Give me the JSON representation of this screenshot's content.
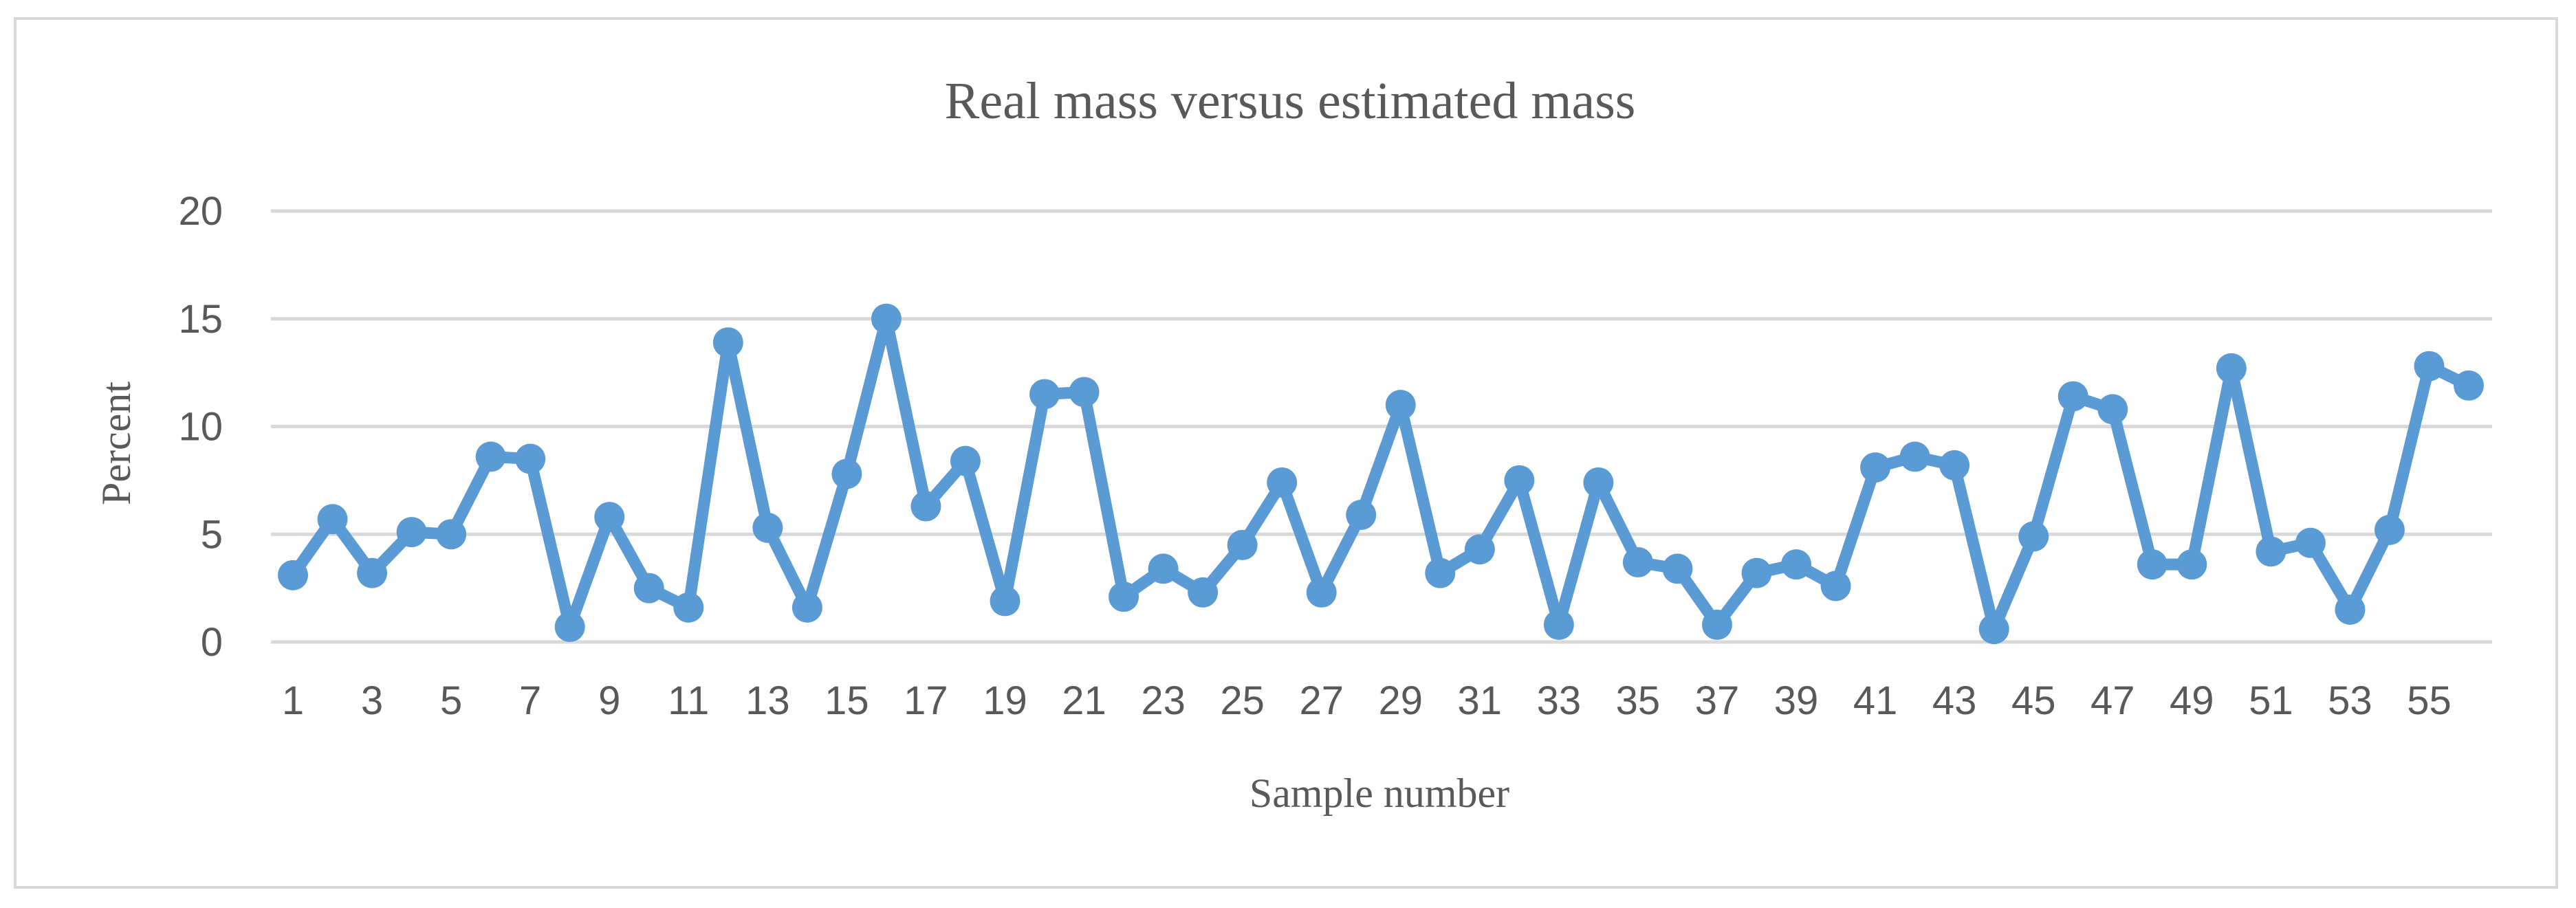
{
  "chart_data": {
    "type": "line",
    "title": "Real mass versus estimated mass",
    "xlabel": "Sample number",
    "ylabel": "Percent",
    "ylim": [
      0,
      20
    ],
    "yticks": [
      0,
      5,
      10,
      15,
      20
    ],
    "grid": true,
    "x": [
      1,
      2,
      3,
      4,
      5,
      6,
      7,
      8,
      9,
      10,
      11,
      12,
      13,
      14,
      15,
      16,
      17,
      18,
      19,
      20,
      21,
      22,
      23,
      24,
      25,
      26,
      27,
      28,
      29,
      30,
      31,
      32,
      33,
      34,
      35,
      36,
      37,
      38,
      39,
      40,
      41,
      42,
      43,
      44,
      45,
      46,
      47,
      48,
      49,
      50,
      51,
      52,
      53,
      54,
      55,
      56
    ],
    "xtick_labels": [
      "1",
      "3",
      "5",
      "7",
      "9",
      "11",
      "13",
      "15",
      "17",
      "19",
      "21",
      "23",
      "25",
      "27",
      "29",
      "31",
      "33",
      "35",
      "37",
      "39",
      "41",
      "43",
      "45",
      "47",
      "49",
      "51",
      "53",
      "55"
    ],
    "series": [
      {
        "name": "Percent",
        "color": "#5b9bd5",
        "values": [
          3.1,
          5.7,
          3.2,
          5.1,
          5.0,
          8.6,
          8.5,
          0.7,
          5.8,
          2.5,
          1.6,
          13.9,
          5.3,
          1.6,
          7.8,
          15.0,
          6.3,
          8.4,
          1.9,
          11.5,
          11.6,
          2.1,
          3.4,
          2.3,
          4.5,
          7.4,
          2.3,
          5.9,
          11.0,
          3.2,
          4.3,
          7.5,
          0.8,
          7.4,
          3.7,
          3.4,
          0.8,
          3.2,
          3.6,
          2.6,
          8.1,
          8.6,
          8.2,
          0.6,
          4.9,
          11.4,
          10.8,
          3.6,
          3.6,
          12.7,
          4.2,
          4.6,
          1.5,
          5.2,
          12.8,
          11.9
        ]
      }
    ]
  }
}
